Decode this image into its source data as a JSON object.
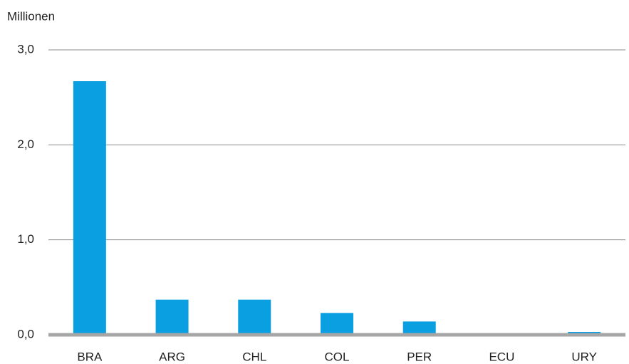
{
  "chart_data": {
    "type": "bar",
    "y_axis_label": "Millionen",
    "categories": [
      "BRA",
      "ARG",
      "CHL",
      "COL",
      "PER",
      "ECU",
      "URY"
    ],
    "values": [
      2.67,
      0.37,
      0.37,
      0.23,
      0.14,
      0,
      0.03
    ],
    "color": "#0a9fe0",
    "ylim": [
      0,
      3
    ],
    "yticks": [
      {
        "value": 0,
        "label": "0,0"
      },
      {
        "value": 1,
        "label": "1,0"
      },
      {
        "value": 2,
        "label": "2,0"
      },
      {
        "value": 3,
        "label": "3,0"
      }
    ],
    "grid": true
  }
}
